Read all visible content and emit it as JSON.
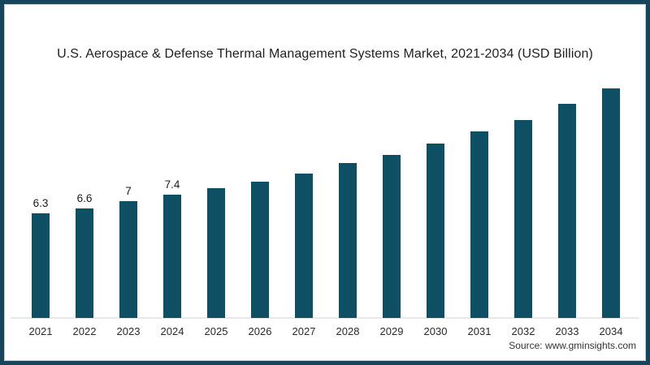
{
  "title": "U.S. Aerospace & Defense Thermal Management Systems Market, 2021-2034 (USD Billion)",
  "source": "Source: www.gminsights.com",
  "colors": {
    "bar": "#0e4f63",
    "frame_border": "#17455c",
    "axis_line": "#e9e9e9",
    "background": "#ffffff"
  },
  "chart_data": {
    "type": "bar",
    "title": "U.S. Aerospace & Defense Thermal Management Systems Market, 2021-2034 (USD Billion)",
    "unit": "USD Billion",
    "categories": [
      "2021",
      "2022",
      "2023",
      "2024",
      "2025",
      "2026",
      "2027",
      "2028",
      "2029",
      "2030",
      "2031",
      "2032",
      "2033",
      "2034"
    ],
    "values": [
      6.3,
      6.6,
      7.0,
      7.4,
      7.8,
      8.2,
      8.7,
      9.3,
      9.8,
      10.5,
      11.2,
      11.9,
      12.9,
      13.8
    ],
    "data_labels": [
      "6.3",
      "6.6",
      "7",
      "7.4",
      "",
      "",
      "",
      "",
      "",
      "",
      "",
      "",
      "",
      ""
    ],
    "xlabel": "",
    "ylabel": "",
    "ylim": [
      0,
      14.5
    ],
    "grid": false,
    "legend": false,
    "bar_color": "#0e4f63"
  }
}
